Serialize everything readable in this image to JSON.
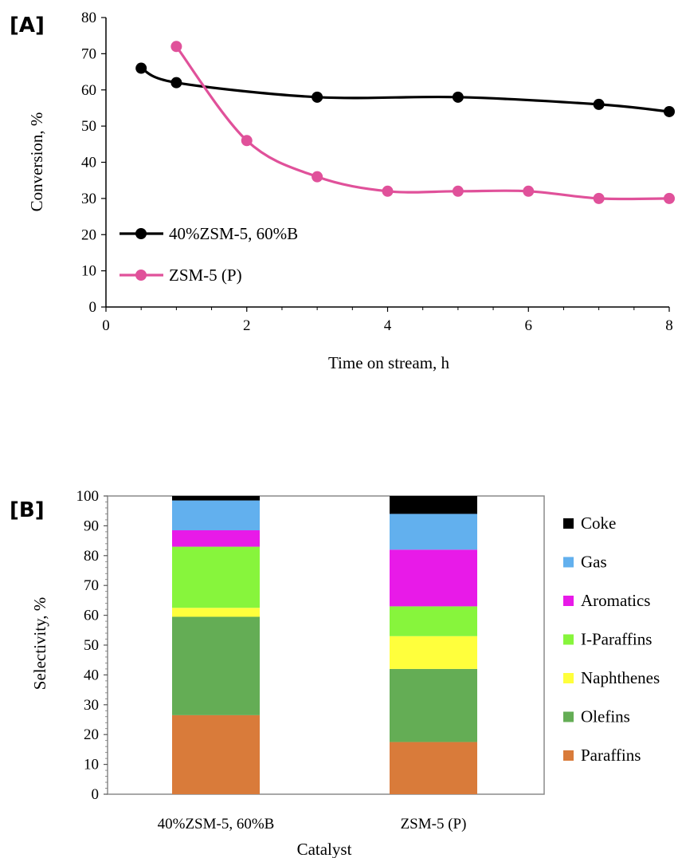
{
  "chart_data": [
    {
      "panel_label": "[A]",
      "type": "line",
      "xlabel": "Time on stream, h",
      "ylabel": "Conversion, %",
      "xlim": [
        0,
        8
      ],
      "ylim": [
        0,
        80
      ],
      "x_ticks": [
        "0",
        "2",
        "4",
        "6",
        "8"
      ],
      "y_ticks": [
        "0",
        "10",
        "20",
        "30",
        "40",
        "50",
        "60",
        "70",
        "80"
      ],
      "grid": false,
      "legend_position": "bottom-left",
      "series": [
        {
          "name": "40%ZSM-5, 60%B",
          "color": "#000000",
          "x": [
            0.5,
            1,
            3,
            5,
            7,
            8
          ],
          "y": [
            66,
            62,
            58,
            58,
            56,
            54
          ]
        },
        {
          "name": "ZSM-5 (P)",
          "color": "#E0519A",
          "x": [
            1,
            2,
            3,
            4,
            5,
            6,
            7,
            8
          ],
          "y": [
            72,
            46,
            36,
            32,
            32,
            32,
            30,
            30
          ]
        }
      ]
    },
    {
      "panel_label": "[B]",
      "type": "bar",
      "stacked": true,
      "xlabel": "Catalyst",
      "ylabel": "Selectivity, %",
      "ylim": [
        0,
        100
      ],
      "y_ticks": [
        "0",
        "10",
        "20",
        "30",
        "40",
        "50",
        "60",
        "70",
        "80",
        "90",
        "100"
      ],
      "categories": [
        "40%ZSM-5, 60%B",
        "ZSM-5 (P)"
      ],
      "legend_position": "right",
      "series": [
        {
          "name": "Paraffins",
          "color": "#D97B3A",
          "values": [
            26.5,
            17.5
          ]
        },
        {
          "name": "Olefins",
          "color": "#64AD55",
          "values": [
            33,
            24.5
          ]
        },
        {
          "name": "Naphthenes",
          "color": "#FFFF3C",
          "values": [
            3,
            11
          ]
        },
        {
          "name": "I-Paraffins",
          "color": "#87F53C",
          "values": [
            20.5,
            10
          ]
        },
        {
          "name": "Aromatics",
          "color": "#E81AE8",
          "values": [
            5.5,
            19
          ]
        },
        {
          "name": "Gas",
          "color": "#62B0EE",
          "values": [
            10,
            12
          ]
        },
        {
          "name": "Coke",
          "color": "#000000",
          "values": [
            1.5,
            6
          ]
        }
      ]
    }
  ]
}
